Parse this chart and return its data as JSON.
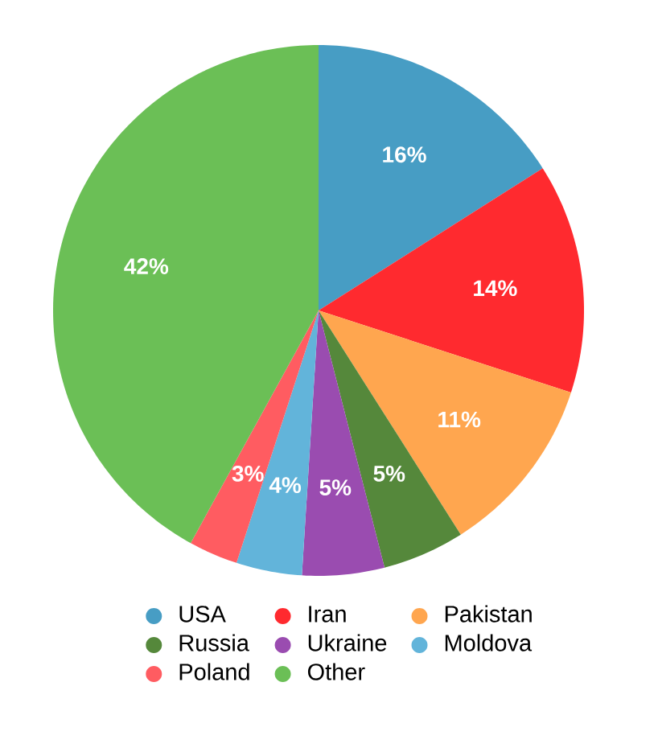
{
  "chart_data": {
    "type": "pie",
    "categories": [
      "USA",
      "Iran",
      "Pakistan",
      "Russia",
      "Ukraine",
      "Moldova",
      "Poland",
      "Other"
    ],
    "values": [
      16,
      14,
      11,
      5,
      5,
      4,
      3,
      42
    ],
    "colors": [
      "#479dc4",
      "#ff2a2f",
      "#ffa64f",
      "#55883b",
      "#9a4cb0",
      "#62b4da",
      "#ff5c61",
      "#6bbf56"
    ],
    "value_labels": [
      "16%",
      "14%",
      "11%",
      "5%",
      "5%",
      "4%",
      "3%",
      "42%"
    ],
    "legend": "bottom"
  }
}
